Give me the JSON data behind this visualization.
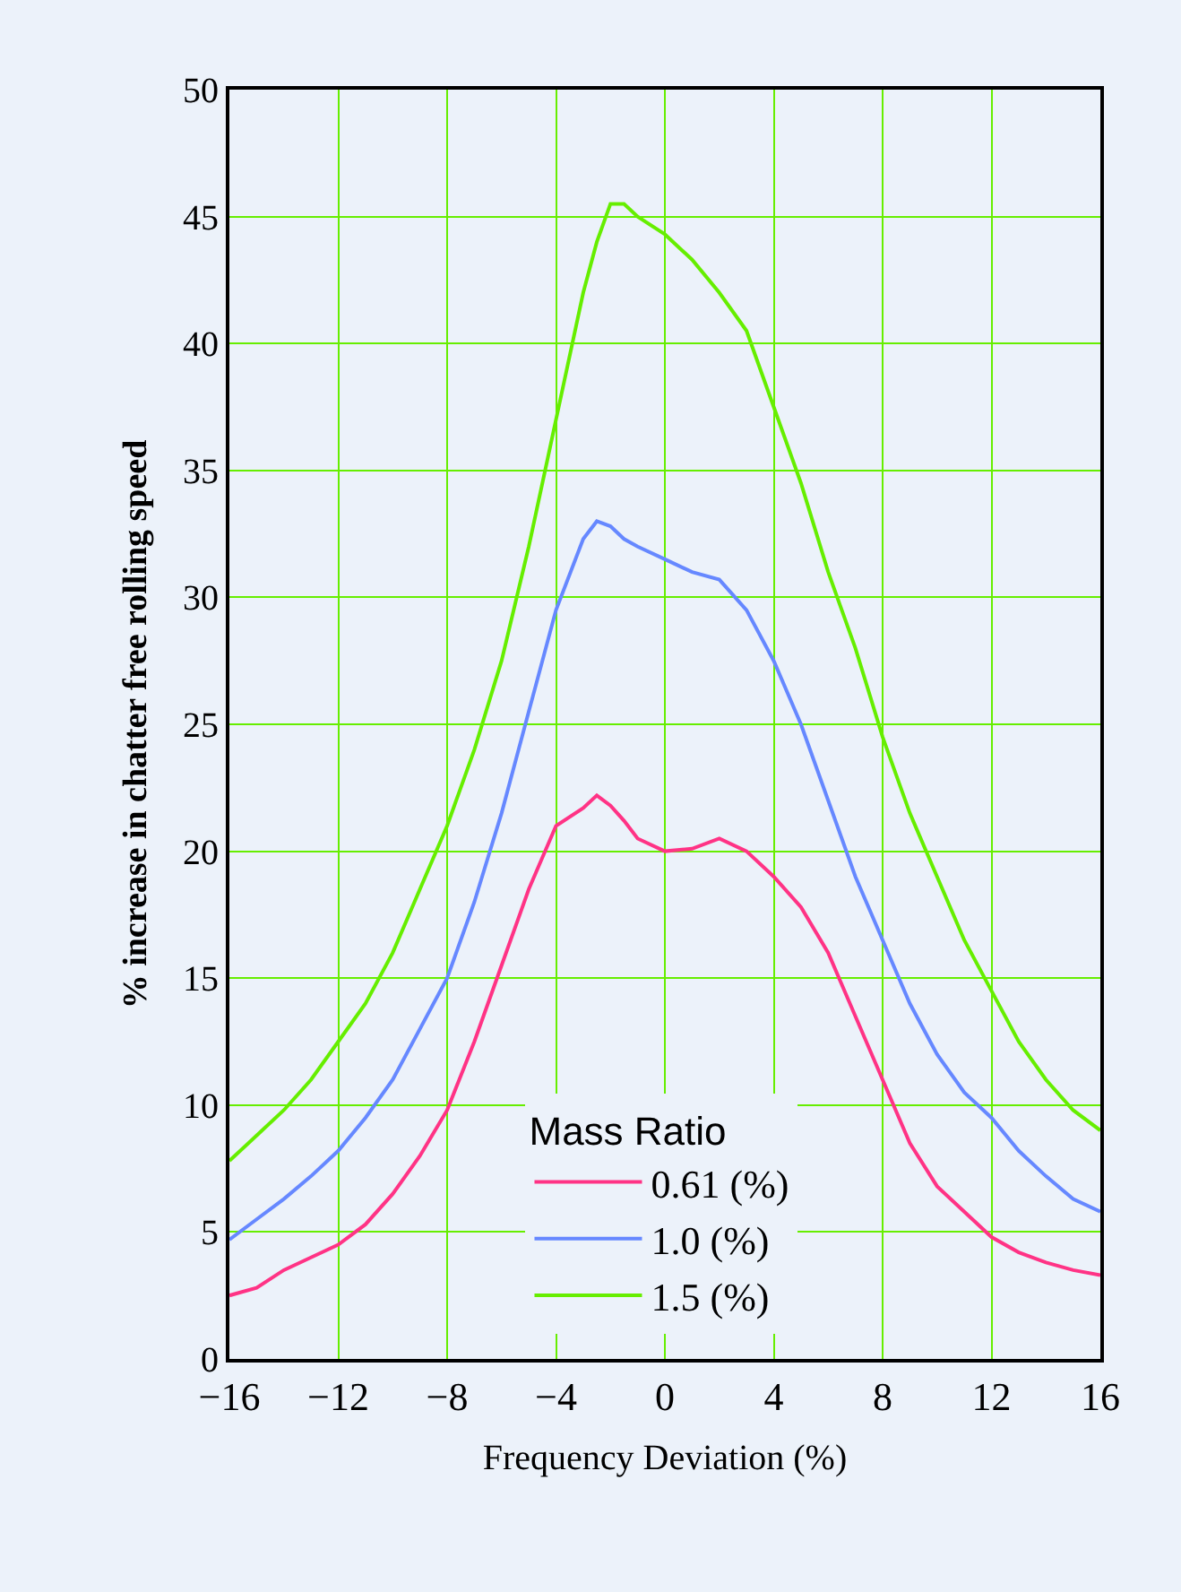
{
  "chart_data": {
    "type": "line",
    "xlabel": "Frequency Deviation (%)",
    "ylabel": "% increase in chatter free rolling speed",
    "legend_title": "Mass Ratio",
    "legend": "bottom",
    "grid": true,
    "marker": "none",
    "line_style": "solid",
    "x": [
      -16,
      -15,
      -14,
      -13,
      -12,
      -11,
      -10,
      -9,
      -8,
      -7,
      -6,
      -5,
      -4,
      -3,
      -2.5,
      -2,
      -1.5,
      -1,
      0,
      1,
      2,
      3,
      4,
      5,
      6,
      7,
      8,
      9,
      10,
      11,
      12,
      13,
      14,
      15,
      16
    ],
    "xlim": [
      -16,
      16
    ],
    "xticks": [
      {
        "value": -16,
        "label": "−16"
      },
      {
        "value": -12,
        "label": "−12"
      },
      {
        "value": -8,
        "label": "−8"
      },
      {
        "value": -4,
        "label": "−4"
      },
      0,
      4,
      8,
      12,
      16
    ],
    "ylim": [
      0,
      50
    ],
    "yticks": [
      0,
      5,
      10,
      15,
      20,
      25,
      30,
      35,
      40,
      45,
      50
    ],
    "series": [
      {
        "name": "0.61 (%)",
        "color": "#ff3385",
        "values": [
          2.5,
          2.8,
          3.5,
          4,
          4.5,
          5.3,
          6.5,
          8,
          9.8,
          12.5,
          15.5,
          18.5,
          21,
          21.7,
          22.2,
          21.8,
          21.2,
          20.5,
          20,
          20.1,
          20.5,
          20,
          19,
          17.8,
          16,
          13.5,
          11,
          8.5,
          6.8,
          5.8,
          4.8,
          4.2,
          3.8,
          3.5,
          3.3
        ]
      },
      {
        "name": "1.0 (%)",
        "color": "#6688ff",
        "values": [
          4.7,
          5.5,
          6.3,
          7.2,
          8.2,
          9.5,
          11,
          13,
          15,
          18,
          21.5,
          25.5,
          29.5,
          32.3,
          33,
          32.8,
          32.3,
          32,
          31.5,
          31,
          30.7,
          29.5,
          27.5,
          25,
          22,
          19,
          16.5,
          14,
          12,
          10.5,
          9.5,
          8.2,
          7.2,
          6.3,
          5.8
        ]
      },
      {
        "name": "1.5 (%)",
        "color": "#66ee00",
        "values": [
          7.8,
          8.8,
          9.8,
          11,
          12.5,
          14,
          16,
          18.5,
          21,
          24,
          27.5,
          32,
          37,
          42,
          44,
          45.5,
          45.5,
          45,
          44.3,
          43.3,
          42,
          40.5,
          37.5,
          34.5,
          31,
          28,
          24.5,
          21.5,
          19,
          16.5,
          14.5,
          12.5,
          11,
          9.8,
          9
        ]
      }
    ]
  }
}
